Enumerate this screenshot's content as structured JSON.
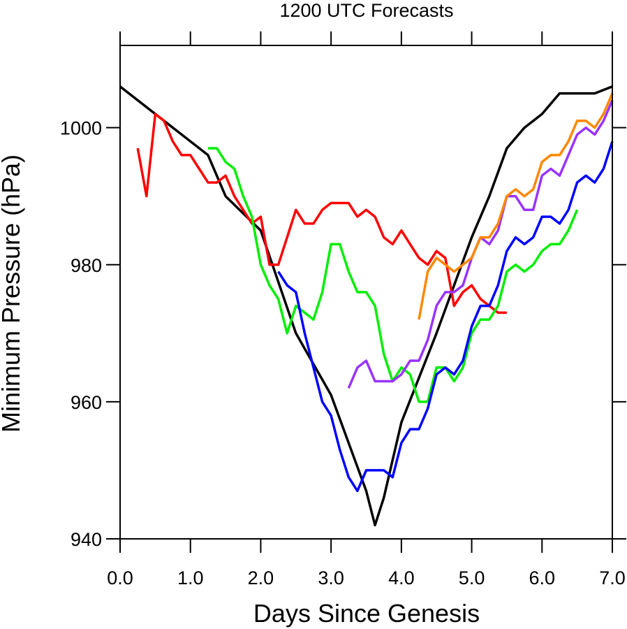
{
  "chart_data": {
    "type": "line",
    "title": "1200 UTC Forecasts",
    "xlabel": "Days Since Genesis",
    "ylabel": "Minimum Pressure (hPa)",
    "xlim": [
      0,
      7
    ],
    "ylim": [
      940,
      1012
    ],
    "x_ticks": [
      "0.0",
      "1.0",
      "2.0",
      "3.0",
      "4.0",
      "5.0",
      "6.0",
      "7.0"
    ],
    "x_tick_values": [
      0,
      1,
      2,
      3,
      4,
      5,
      6,
      7
    ],
    "y_ticks": [
      "940",
      "960",
      "980",
      "1000"
    ],
    "y_tick_values": [
      940,
      960,
      980,
      1000
    ],
    "grid": false,
    "legend": "none",
    "series": [
      {
        "color": "#000000",
        "x": [
          0,
          1.25,
          1.5,
          2,
          2.5,
          3,
          3.5,
          3.625,
          3.75,
          4,
          4.5,
          5,
          5.25,
          5.5,
          5.75,
          6,
          6.25,
          6.5,
          6.75,
          7
        ],
        "y": [
          1006,
          996,
          990,
          985,
          970,
          961,
          947,
          942,
          946,
          957,
          970,
          984,
          990,
          997,
          1000,
          1002,
          1005,
          1005,
          1005,
          1006
        ]
      },
      {
        "color": "#ff0000",
        "x": [
          0.25,
          0.375,
          0.5,
          0.625,
          0.75,
          0.875,
          1,
          1.125,
          1.25,
          1.375,
          1.5,
          1.625,
          1.75,
          1.875,
          2,
          2.125,
          2.25,
          2.375,
          2.5,
          2.625,
          2.75,
          2.875,
          3,
          3.125,
          3.25,
          3.375,
          3.5,
          3.625,
          3.75,
          3.875,
          4,
          4.125,
          4.25,
          4.375,
          4.5,
          4.625,
          4.75,
          4.875,
          5,
          5.125,
          5.25,
          5.375,
          5.5
        ],
        "y": [
          997,
          990,
          1002,
          1001,
          998,
          996,
          996,
          994,
          992,
          992,
          993,
          990,
          988,
          986,
          987,
          980,
          980,
          984,
          988,
          986,
          986,
          988,
          989,
          989,
          989,
          987,
          988,
          987,
          984,
          983,
          985,
          983,
          981,
          980,
          982,
          981,
          974,
          976,
          977,
          975,
          974,
          973,
          973
        ]
      },
      {
        "color": "#00ee00",
        "x": [
          1.25,
          1.375,
          1.5,
          1.625,
          1.75,
          1.875,
          2,
          2.125,
          2.25,
          2.375,
          2.5,
          2.625,
          2.75,
          2.875,
          3,
          3.125,
          3.25,
          3.375,
          3.5,
          3.625,
          3.75,
          3.875,
          4,
          4.125,
          4.25,
          4.375,
          4.5,
          4.625,
          4.75,
          4.875,
          5,
          5.125,
          5.25,
          5.375,
          5.5,
          5.625,
          5.75,
          5.875,
          6,
          6.125,
          6.25,
          6.375,
          6.5
        ],
        "y": [
          997,
          997,
          995,
          994,
          990,
          987,
          980,
          977,
          975,
          970,
          974,
          973,
          972,
          976,
          983,
          983,
          979,
          976,
          976,
          974,
          967,
          963,
          965,
          964,
          960,
          960,
          965,
          965,
          963,
          965,
          970,
          972,
          972,
          974,
          979,
          980,
          979,
          980,
          982,
          983,
          983,
          985,
          988
        ]
      },
      {
        "color": "#0000ff",
        "x": [
          2.25,
          2.375,
          2.5,
          2.625,
          2.75,
          2.875,
          3,
          3.125,
          3.25,
          3.375,
          3.5,
          3.625,
          3.75,
          3.875,
          4,
          4.125,
          4.25,
          4.375,
          4.5,
          4.625,
          4.75,
          4.875,
          5,
          5.125,
          5.25,
          5.375,
          5.5,
          5.625,
          5.75,
          5.875,
          6,
          6.125,
          6.25,
          6.375,
          6.5,
          6.625,
          6.75,
          6.875,
          7
        ],
        "y": [
          979,
          977,
          976,
          970,
          965,
          960,
          958,
          953,
          949,
          947,
          950,
          950,
          950,
          949,
          954,
          956,
          956,
          959,
          964,
          965,
          964,
          966,
          971,
          974,
          974,
          977,
          982,
          984,
          983,
          984,
          987,
          987,
          986,
          988,
          992,
          993,
          992,
          994,
          998
        ]
      },
      {
        "color": "#9933ff",
        "x": [
          3.25,
          3.375,
          3.5,
          3.625,
          3.75,
          3.875,
          4,
          4.125,
          4.25,
          4.375,
          4.5,
          4.625,
          4.75,
          4.875,
          5,
          5.125,
          5.25,
          5.375,
          5.5,
          5.625,
          5.75,
          5.875,
          6,
          6.125,
          6.25,
          6.375,
          6.5,
          6.625,
          6.75,
          6.875,
          7
        ],
        "y": [
          962,
          965,
          966,
          963,
          963,
          963,
          964,
          966,
          966,
          969,
          974,
          976,
          976,
          977,
          981,
          984,
          983,
          985,
          990,
          990,
          988,
          988,
          993,
          994,
          993,
          996,
          999,
          1000,
          999,
          1001,
          1004
        ]
      },
      {
        "color": "#ff8800",
        "x": [
          4.25,
          4.375,
          4.5,
          4.625,
          4.75,
          4.875,
          5,
          5.125,
          5.25,
          5.375,
          5.5,
          5.625,
          5.75,
          5.875,
          6,
          6.125,
          6.25,
          6.375,
          6.5,
          6.625,
          6.75,
          6.875,
          7
        ],
        "y": [
          972,
          979,
          981,
          980,
          979,
          980,
          981,
          984,
          984,
          986,
          990,
          991,
          990,
          991,
          995,
          996,
          996,
          998,
          1001,
          1001,
          1000,
          1002,
          1005
        ]
      }
    ]
  }
}
